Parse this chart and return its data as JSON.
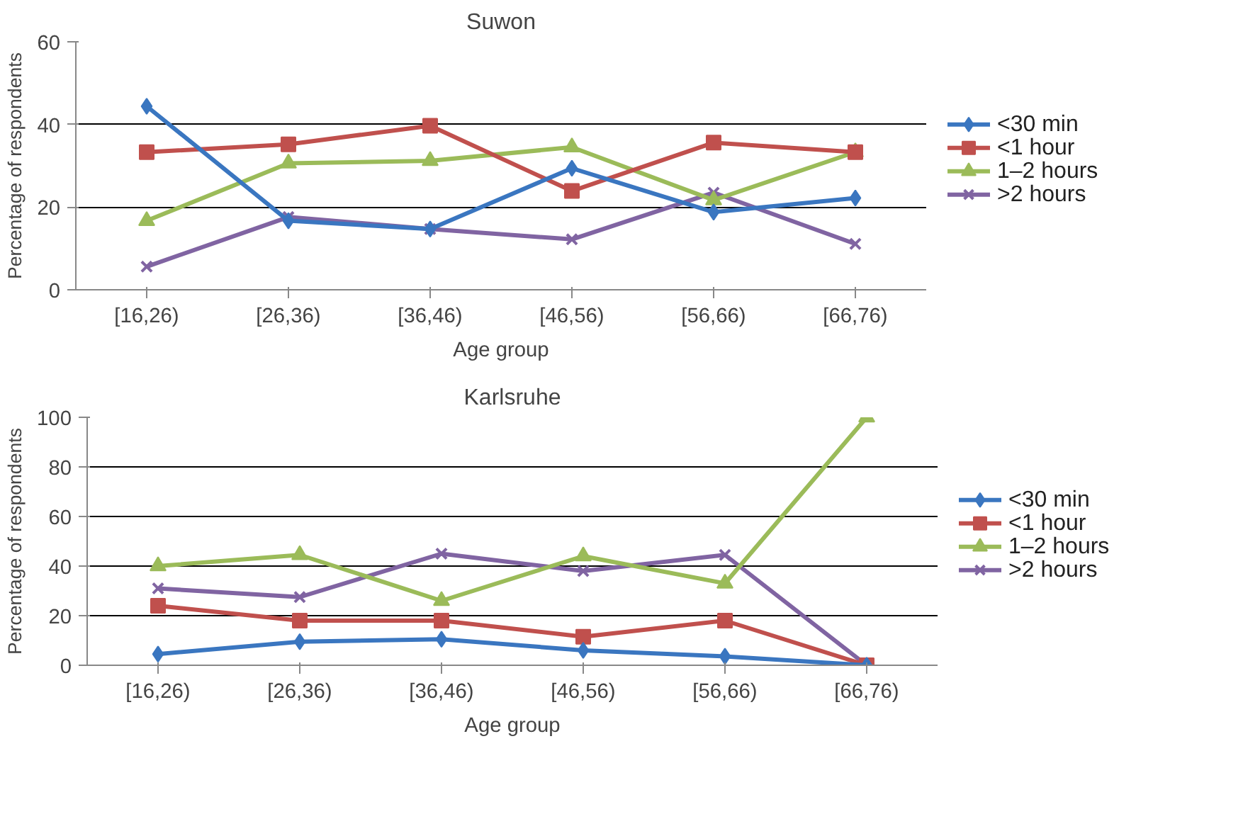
{
  "chart_data": [
    {
      "type": "line",
      "title": "Suwon",
      "xlabel": "Age group",
      "ylabel": "Percentage of respondents",
      "categories": [
        "[16,26)",
        "[26,36)",
        "[36,46)",
        "[46,56)",
        "[56,66)",
        "[66,76)"
      ],
      "ylim": [
        0,
        60
      ],
      "yticks": [
        0,
        20,
        40,
        60
      ],
      "grid": "y",
      "legend": "right",
      "series": [
        {
          "name": "<30 min",
          "color": "#3a76c0",
          "marker": "diamond",
          "values": [
            44.4,
            16.7,
            14.7,
            29.4,
            18.8,
            22.2
          ]
        },
        {
          "name": "<1 hour",
          "color": "#c0504d",
          "marker": "square",
          "values": [
            33.3,
            35.2,
            39.7,
            23.9,
            35.6,
            33.3
          ]
        },
        {
          "name": "1–2 hours",
          "color": "#9bbb59",
          "marker": "triangle",
          "values": [
            16.7,
            30.6,
            31.2,
            34.5,
            21.7,
            33.3
          ]
        },
        {
          "name": ">2 hours",
          "color": "#8064a2",
          "marker": "cross",
          "values": [
            5.6,
            17.6,
            14.7,
            12.2,
            23.5,
            11.1
          ]
        }
      ]
    },
    {
      "type": "line",
      "title": "Karlsruhe",
      "xlabel": "Age group",
      "ylabel": "Percentage of respondents",
      "categories": [
        "[16,26)",
        "[26,36)",
        "[36,46)",
        "[46,56)",
        "[56,66)",
        "[66,76)"
      ],
      "ylim": [
        0,
        100
      ],
      "yticks": [
        0,
        20,
        40,
        60,
        80,
        100
      ],
      "grid": "y",
      "legend": "right",
      "series": [
        {
          "name": "<30 min",
          "color": "#3a76c0",
          "marker": "diamond",
          "values": [
            4.5,
            9.5,
            10.5,
            6,
            3.6,
            0
          ]
        },
        {
          "name": "<1 hour",
          "color": "#c0504d",
          "marker": "square",
          "values": [
            24,
            18,
            18,
            11.5,
            18,
            0
          ]
        },
        {
          "name": "1–2 hours",
          "color": "#9bbb59",
          "marker": "triangle",
          "values": [
            40,
            44.5,
            26,
            44,
            33,
            100
          ]
        },
        {
          "name": ">2 hours",
          "color": "#8064a2",
          "marker": "cross",
          "values": [
            31,
            27.5,
            45,
            38,
            44.5,
            0
          ]
        }
      ]
    }
  ]
}
